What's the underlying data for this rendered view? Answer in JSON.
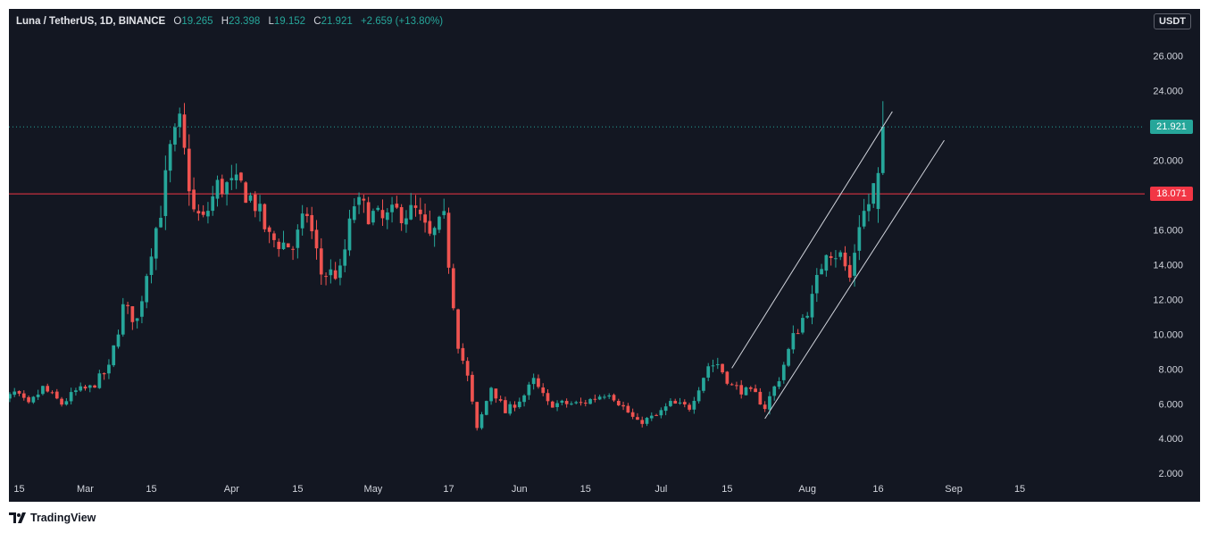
{
  "legend": {
    "symbol": "Luna / TetherUS, 1D, BINANCE",
    "o_label": "O",
    "o_value": "19.265",
    "h_label": "H",
    "h_value": "23.398",
    "l_label": "L",
    "l_value": "19.152",
    "c_label": "C",
    "c_value": "21.921",
    "change": "+2.659 (+13.80%)"
  },
  "currency": "USDT",
  "footer": {
    "brand": "TradingView"
  },
  "colors": {
    "background": "#131722",
    "up": "#26a69a",
    "down": "#ef5350",
    "level_line": "#f23645",
    "channel": "#d1d4dc",
    "axis_text": "#d1d4dc"
  },
  "chart_data": {
    "type": "candlestick",
    "title": "Luna / TetherUS, 1D, BINANCE",
    "ylim": [
      1.6,
      28.7
    ],
    "y_ticks": [
      "26.000",
      "24.000",
      "22.000",
      "20.000",
      "18.000",
      "16.000",
      "14.000",
      "12.000",
      "10.000",
      "8.000",
      "6.000",
      "4.000",
      "2.000"
    ],
    "x_ticks": [
      {
        "label": "15",
        "date": "2021-02-15"
      },
      {
        "label": "Mar",
        "date": "2021-03-01"
      },
      {
        "label": "15",
        "date": "2021-03-15"
      },
      {
        "label": "Apr",
        "date": "2021-04-01"
      },
      {
        "label": "15",
        "date": "2021-04-15"
      },
      {
        "label": "May",
        "date": "2021-05-01"
      },
      {
        "label": "17",
        "date": "2021-05-17"
      },
      {
        "label": "Jun",
        "date": "2021-06-01"
      },
      {
        "label": "15",
        "date": "2021-06-15"
      },
      {
        "label": "Jul",
        "date": "2021-07-01"
      },
      {
        "label": "15",
        "date": "2021-07-15"
      },
      {
        "label": "Aug",
        "date": "2021-08-01"
      },
      {
        "label": "16",
        "date": "2021-08-16"
      },
      {
        "label": "Sep",
        "date": "2021-09-01"
      },
      {
        "label": "15",
        "date": "2021-09-15"
      }
    ],
    "last_price": "21.921",
    "horizontal_level": "18.071",
    "grid": false,
    "channel_lines": [
      {
        "start": {
          "date": "2021-07-16",
          "price": 8.05
        },
        "end": {
          "date": "2021-08-19",
          "price": 22.8
        }
      },
      {
        "start": {
          "date": "2021-07-23",
          "price": 5.15
        },
        "end": {
          "date": "2021-08-30",
          "price": 21.15
        }
      }
    ],
    "path_points": [
      [
        "2021-02-10",
        5.8
      ],
      [
        "2021-02-14",
        6.6
      ],
      [
        "2021-02-17",
        5.9
      ],
      [
        "2021-02-20",
        6.9
      ],
      [
        "2021-02-24",
        6.0
      ],
      [
        "2021-02-27",
        6.7
      ],
      [
        "2021-03-02",
        6.9
      ],
      [
        "2021-03-06",
        8.0
      ],
      [
        "2021-03-09",
        11.5
      ],
      [
        "2021-03-12",
        10.8
      ],
      [
        "2021-03-15",
        15.0
      ],
      [
        "2021-03-17",
        17.2
      ],
      [
        "2021-03-19",
        20.5
      ],
      [
        "2021-03-21",
        22.0
      ],
      [
        "2021-03-24",
        17.0
      ],
      [
        "2021-03-26",
        16.5
      ],
      [
        "2021-03-29",
        18.5
      ],
      [
        "2021-04-03",
        18.5
      ],
      [
        "2021-04-06",
        17.5
      ],
      [
        "2021-04-09",
        15.5
      ],
      [
        "2021-04-14",
        15.0
      ],
      [
        "2021-04-17",
        17.0
      ],
      [
        "2021-04-20",
        13.5
      ],
      [
        "2021-04-24",
        13.5
      ],
      [
        "2021-04-27",
        17.5
      ],
      [
        "2021-04-30",
        17.0
      ],
      [
        "2021-05-03",
        16.5
      ],
      [
        "2021-05-06",
        17.0
      ],
      [
        "2021-05-10",
        17.0
      ],
      [
        "2021-05-13",
        15.5
      ],
      [
        "2021-05-16",
        16.5
      ],
      [
        "2021-05-19",
        9.5
      ],
      [
        "2021-05-21",
        7.5
      ],
      [
        "2021-05-23",
        4.5
      ],
      [
        "2021-05-26",
        7.0
      ],
      [
        "2021-05-29",
        5.5
      ],
      [
        "2021-06-02",
        6.5
      ],
      [
        "2021-06-04",
        7.3
      ],
      [
        "2021-06-07",
        6.0
      ],
      [
        "2021-06-14",
        6.0
      ],
      [
        "2021-06-20",
        6.7
      ],
      [
        "2021-06-26",
        4.9
      ],
      [
        "2021-06-30",
        5.3
      ],
      [
        "2021-07-03",
        6.0
      ],
      [
        "2021-07-07",
        5.8
      ],
      [
        "2021-07-11",
        8.2
      ],
      [
        "2021-07-13",
        8.3
      ],
      [
        "2021-07-16",
        7.0
      ],
      [
        "2021-07-21",
        6.5
      ],
      [
        "2021-07-23",
        5.8
      ],
      [
        "2021-07-26",
        7.5
      ],
      [
        "2021-07-29",
        9.8
      ],
      [
        "2021-08-02",
        12.0
      ],
      [
        "2021-08-05",
        15.0
      ],
      [
        "2021-08-08",
        14.5
      ],
      [
        "2021-08-10",
        13.2
      ],
      [
        "2021-08-12",
        16.5
      ],
      [
        "2021-08-14",
        17.5
      ],
      [
        "2021-08-16",
        19.3
      ],
      [
        "2021-08-17",
        21.9
      ]
    ],
    "final_candles": [
      {
        "date": "2021-08-16",
        "open": 17.2,
        "high": 19.6,
        "low": 16.4,
        "close": 19.265
      },
      {
        "date": "2021-08-17",
        "open": 19.265,
        "high": 23.398,
        "low": 19.152,
        "close": 21.921
      }
    ]
  }
}
